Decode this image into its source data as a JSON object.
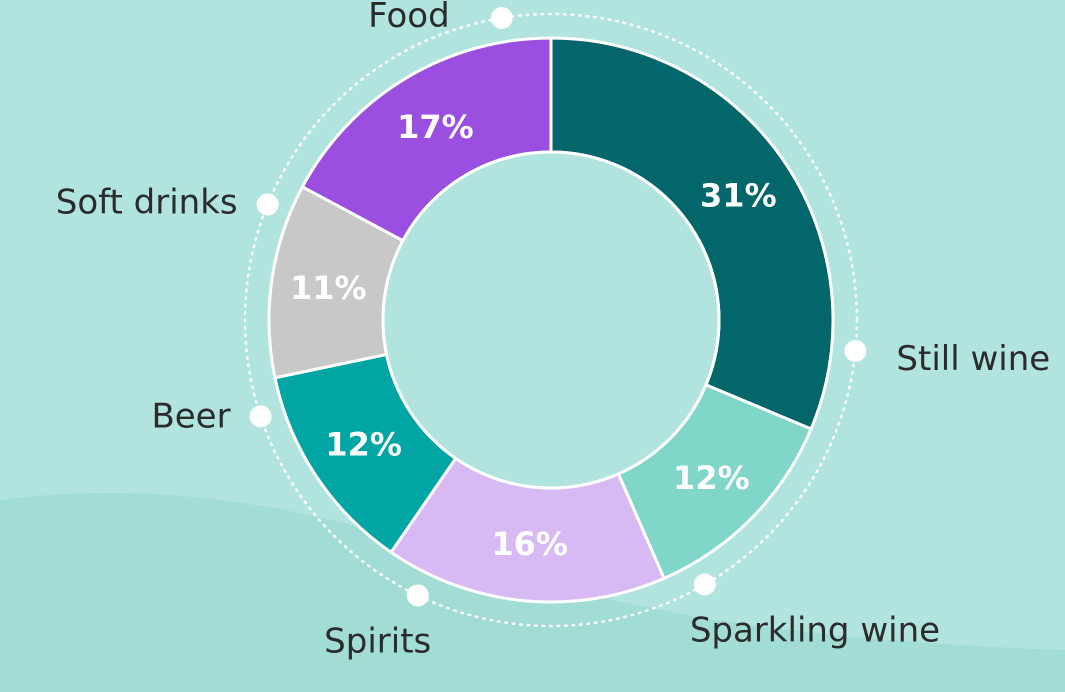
{
  "chart_data": {
    "type": "pie",
    "variant": "donut",
    "title": "",
    "slices": [
      {
        "label": "Still wine",
        "value": 31,
        "value_label": "31%",
        "color": "#03666a"
      },
      {
        "label": "Sparkling wine",
        "value": 12,
        "value_label": "12%",
        "color": "#80d6c9"
      },
      {
        "label": "Spirits",
        "value": 16,
        "value_label": "16%",
        "color": "#d7b9f3"
      },
      {
        "label": "Beer",
        "value": 12,
        "value_label": "12%",
        "color": "#01a5a4"
      },
      {
        "label": "Soft drinks",
        "value": 11,
        "value_label": "11%",
        "color": "#c8c8c8"
      },
      {
        "label": "Food",
        "value": 17,
        "value_label": "17%",
        "color": "#9b4fe0"
      }
    ],
    "legend": "labels outside slices with dotted ring and marker dots"
  },
  "colors": {
    "background": "#b1e4de",
    "background_wave": "#a2ddd5",
    "donut_hole": "#b1e4de",
    "separator": "#ffffff",
    "label_text": "#2b2b2b",
    "percent_text": "#ffffff",
    "dot": "#ffffff"
  }
}
